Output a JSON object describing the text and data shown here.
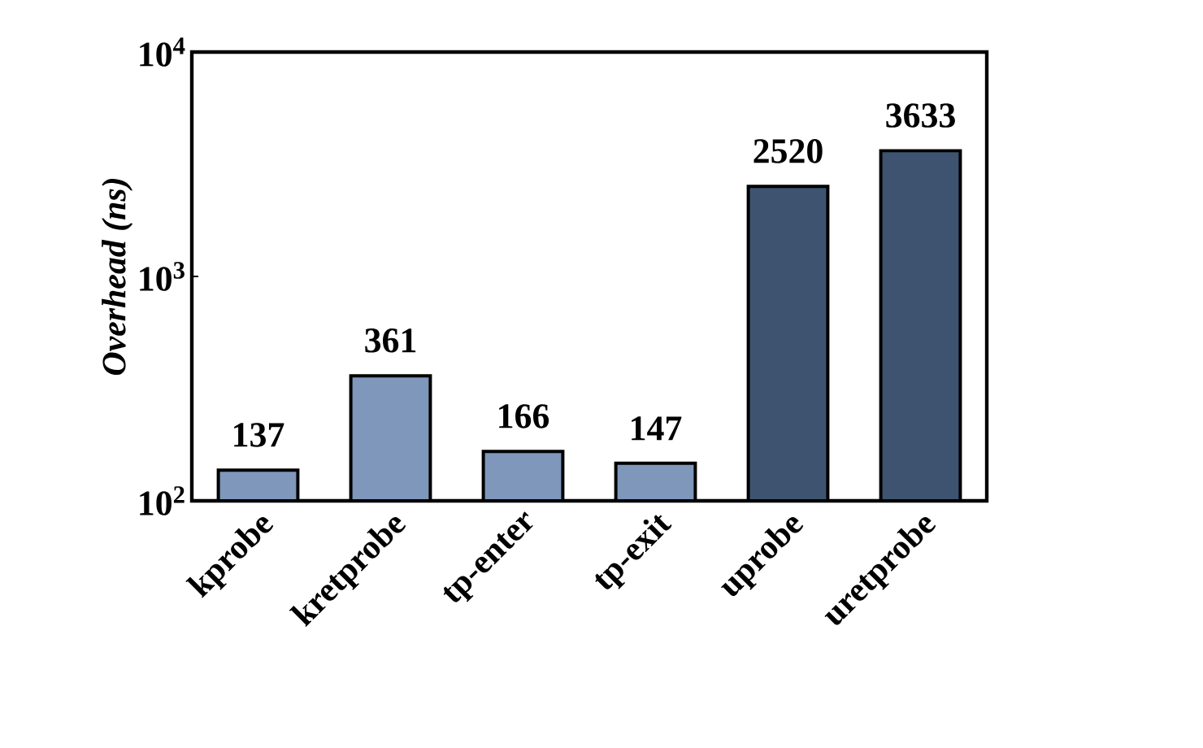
{
  "chart_data": {
    "type": "bar",
    "ylabel": "Overhead (ns)",
    "categories": [
      "kprobe",
      "kretprobe",
      "tp-enter",
      "tp-exit",
      "uprobe",
      "uretprobe"
    ],
    "values": [
      137,
      361,
      166,
      147,
      2520,
      3633
    ],
    "colors": [
      "#7e97bb",
      "#7e97bb",
      "#7e97bb",
      "#7e97bb",
      "#3e5370",
      "#3e5370"
    ],
    "log": true,
    "ylim": [
      100,
      10000
    ],
    "yticks": [
      {
        "value": 100,
        "label": "10$^{2}$"
      },
      {
        "value": 1000,
        "label": "10$^{3}$"
      },
      {
        "value": 10000,
        "label": "10$^{4}$"
      }
    ],
    "data_labels": true
  }
}
